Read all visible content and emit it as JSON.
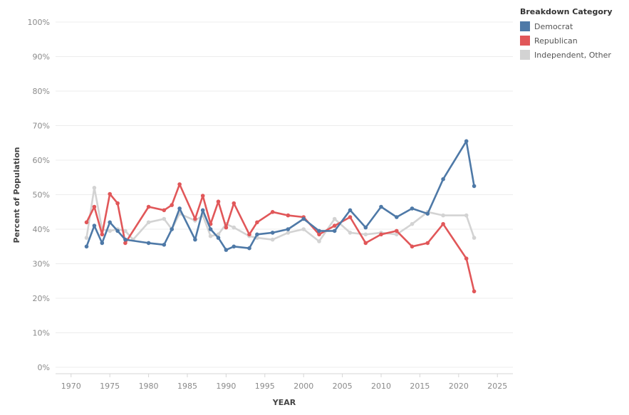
{
  "chart_data": {
    "type": "line",
    "xlabel": "YEAR",
    "ylabel": "Percent of Population",
    "xlim": [
      1968,
      2027
    ],
    "ylim": [
      0,
      100
    ],
    "x_ticks": [
      1970,
      1975,
      1980,
      1985,
      1990,
      1995,
      2000,
      2005,
      2010,
      2015,
      2020,
      2025
    ],
    "y_ticks": [
      "0%",
      "10%",
      "20%",
      "30%",
      "40%",
      "50%",
      "60%",
      "70%",
      "80%",
      "90%",
      "100%"
    ],
    "grid": "horizontal",
    "legend": {
      "title": "Breakdown Category",
      "placement": "top-right",
      "entries": [
        "Democrat",
        "Republican",
        "Independent, Other"
      ]
    },
    "series": [
      {
        "name": "Independent, Other",
        "color": "#d3d3d3",
        "x": [
          1972,
          1973,
          1974,
          1975,
          1976,
          1977,
          1978,
          1980,
          1982,
          1983,
          1984,
          1986,
          1987,
          1988,
          1989,
          1990,
          1991,
          1993,
          1994,
          1996,
          1998,
          2000,
          2002,
          2004,
          2006,
          2008,
          2010,
          2012,
          2014,
          2016,
          2018,
          2021,
          2022
        ],
        "y": [
          37.5,
          52,
          40,
          39.5,
          40,
          39.5,
          37,
          42,
          43,
          40,
          44.5,
          42.5,
          44,
          38,
          38.5,
          41.5,
          40.5,
          38,
          37.5,
          37,
          39,
          40,
          36.5,
          43,
          39,
          38.5,
          39,
          38.5,
          41.5,
          45,
          44,
          44,
          37.5
        ]
      },
      {
        "name": "Republican",
        "color": "#e15759",
        "x": [
          1972,
          1973,
          1974,
          1975,
          1976,
          1977,
          1980,
          1982,
          1983,
          1984,
          1986,
          1987,
          1988,
          1989,
          1990,
          1991,
          1993,
          1994,
          1996,
          1998,
          2000,
          2002,
          2004,
          2006,
          2008,
          2010,
          2012,
          2014,
          2016,
          2018,
          2021,
          2022
        ],
        "y": [
          42,
          46.5,
          38.5,
          50.2,
          47.5,
          36,
          46.5,
          45.5,
          47,
          53,
          43,
          49.7,
          41.5,
          48,
          40.5,
          47.5,
          38.5,
          42,
          45,
          44,
          43.5,
          38.5,
          41,
          43.5,
          36,
          38.5,
          39.5,
          35,
          36,
          41.5,
          31.5,
          22
        ]
      },
      {
        "name": "Democrat",
        "color": "#4e79a7",
        "x": [
          1972,
          1973,
          1974,
          1975,
          1976,
          1977,
          1980,
          1982,
          1983,
          1984,
          1986,
          1987,
          1988,
          1989,
          1990,
          1991,
          1993,
          1994,
          1996,
          1998,
          2000,
          2002,
          2004,
          2006,
          2008,
          2010,
          2012,
          2014,
          2016,
          2018,
          2021,
          2022
        ],
        "y": [
          35,
          41,
          36,
          42,
          39.5,
          37,
          36,
          35.5,
          40,
          46,
          37,
          45.5,
          40,
          37.5,
          34,
          35,
          34.5,
          38.5,
          39,
          40,
          43,
          39.5,
          39.5,
          45.5,
          40.5,
          46.5,
          43.5,
          46,
          44.5,
          54.5,
          65.5,
          52.5
        ]
      }
    ]
  }
}
